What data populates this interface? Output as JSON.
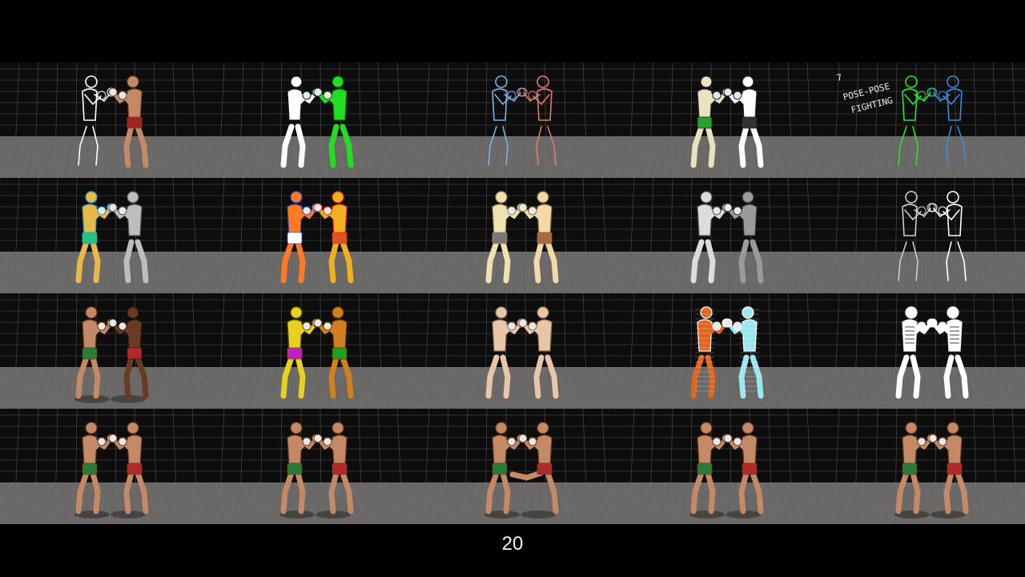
{
  "slide": {
    "page_number": "20"
  },
  "annotation": {
    "number": "7",
    "line1": "POSE-POSE",
    "line2": "FIGHTING"
  },
  "palette": {
    "background": "#000000",
    "floor": "#6b6a68",
    "wall": "#0d0d0d",
    "grid_line": "#8a8a8a",
    "skin": "#c28a66",
    "trunks_green": "#2a7a3a",
    "trunks_red": "#b02a2a"
  },
  "rows": [
    {
      "tiles": [
        {
          "style": "outline-vs-render",
          "left": {
            "fill": "none",
            "stroke": "#ffffff"
          },
          "right": {
            "fill": "#c28a66",
            "stroke": "#7a4a30",
            "shorts": "#a32222"
          }
        },
        {
          "style": "silhouette",
          "left": {
            "fill": "#ffffff",
            "stroke": "#111111"
          },
          "right": {
            "fill": "#22dd22",
            "stroke": "#0a5a0a"
          }
        },
        {
          "style": "sketch",
          "left": {
            "fill": "none",
            "stroke": "#7fb0e0"
          },
          "right": {
            "fill": "none",
            "stroke": "#e07a70"
          }
        },
        {
          "style": "cartoon",
          "left": {
            "fill": "#e8e2c0",
            "stroke": "#222222",
            "shorts": "#2aa030"
          },
          "right": {
            "fill": "#ffffff",
            "stroke": "#222222",
            "shorts": "#333333"
          }
        },
        {
          "style": "stick-sketch",
          "left": {
            "fill": "none",
            "stroke": "#33dd33"
          },
          "right": {
            "fill": "none",
            "stroke": "#3a8ad8"
          }
        }
      ]
    },
    {
      "tiles": [
        {
          "style": "painted",
          "left": {
            "fill": "#e8b84a",
            "stroke": "#2aa0c8",
            "shorts": "#2ac080"
          },
          "right": {
            "fill": "#bdbdbd",
            "stroke": "#555555"
          }
        },
        {
          "style": "segmented",
          "left": {
            "fill": "#ff7a20",
            "stroke": "#3050c0",
            "shorts": "#ffffff"
          },
          "right": {
            "fill": "#f0b020",
            "stroke": "#e03020",
            "shorts": "#e05020"
          }
        },
        {
          "style": "flat-shade",
          "left": {
            "fill": "#f0e2b0",
            "stroke": "#9a8a60",
            "shorts": "#777777"
          },
          "right": {
            "fill": "#f3d8a8",
            "stroke": "#8a6a40",
            "shorts": "#a86a40"
          }
        },
        {
          "style": "grayscale",
          "left": {
            "fill": "#dcdcdc",
            "stroke": "#555555"
          },
          "right": {
            "fill": "#9a9a9a",
            "stroke": "#333333"
          }
        },
        {
          "style": "line-art",
          "left": {
            "fill": "none",
            "stroke": "#cccccc"
          },
          "right": {
            "fill": "none",
            "stroke": "#ffffff"
          }
        }
      ]
    },
    {
      "tiles": [
        {
          "style": "render",
          "left": {
            "fill": "#c48a66",
            "stroke": "#6a3a20",
            "shorts": "#2a7a3a"
          },
          "right": {
            "fill": "#6a3a22",
            "stroke": "#2a1a10",
            "shorts": "#b02a2a"
          }
        },
        {
          "style": "mannequin-color",
          "left": {
            "fill": "#e8d020",
            "stroke": "#6a5a00",
            "shorts": "#c020c0"
          },
          "right": {
            "fill": "#d08020",
            "stroke": "#6a3a00",
            "shorts": "#20a020"
          }
        },
        {
          "style": "wooden-mannequin",
          "left": {
            "fill": "#e8c6a8",
            "stroke": "#8a6a50"
          },
          "right": {
            "fill": "#e8c6a8",
            "stroke": "#8a6a50"
          }
        },
        {
          "style": "voxel",
          "left": {
            "fill": "#e0661e",
            "stroke": "#ffffff"
          },
          "right": {
            "fill": "#9ae6ee",
            "stroke": "#ffffff"
          }
        },
        {
          "style": "skeleton",
          "left": {
            "fill": "#ffffff",
            "stroke": "#ffffff"
          },
          "right": {
            "fill": "#ffffff",
            "stroke": "#ffffff"
          }
        }
      ]
    },
    {
      "tiles": [
        {
          "style": "render",
          "left": {
            "fill": "#c48a66",
            "stroke": "#6a3a20",
            "shorts": "#2a7a3a"
          },
          "right": {
            "fill": "#c48a66",
            "stroke": "#6a3a20",
            "shorts": "#b02a2a"
          }
        },
        {
          "style": "render",
          "left": {
            "fill": "#c48a66",
            "stroke": "#6a3a20",
            "shorts": "#2a7a3a"
          },
          "right": {
            "fill": "#c48a66",
            "stroke": "#6a3a20",
            "shorts": "#b02a2a"
          }
        },
        {
          "style": "render-kick",
          "left": {
            "fill": "#c48a66",
            "stroke": "#6a3a20",
            "shorts": "#2a7a3a"
          },
          "right": {
            "fill": "#c48a66",
            "stroke": "#6a3a20",
            "shorts": "#b02a2a"
          }
        },
        {
          "style": "render",
          "left": {
            "fill": "#c48a66",
            "stroke": "#6a3a20",
            "shorts": "#2a7a3a"
          },
          "right": {
            "fill": "#c48a66",
            "stroke": "#6a3a20",
            "shorts": "#b02a2a"
          }
        },
        {
          "style": "render",
          "left": {
            "fill": "#c48a66",
            "stroke": "#6a3a20",
            "shorts": "#2a7a3a"
          },
          "right": {
            "fill": "#c48a66",
            "stroke": "#6a3a20",
            "shorts": "#b02a2a"
          }
        }
      ]
    }
  ]
}
